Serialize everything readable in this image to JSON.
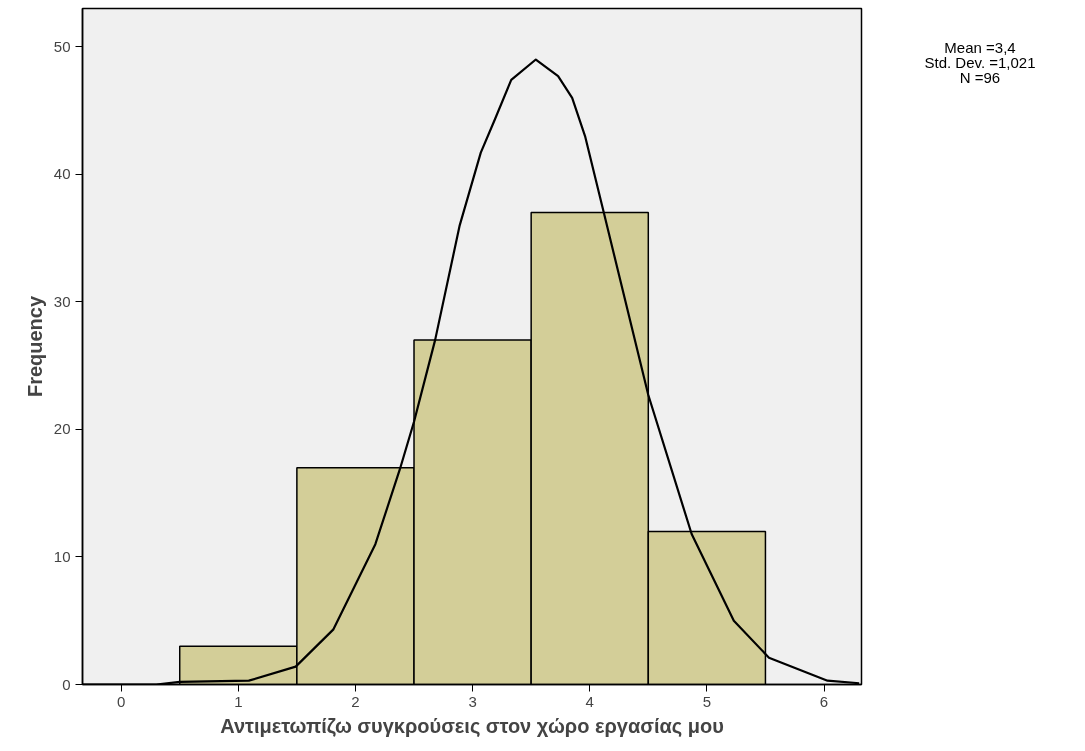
{
  "chart_data": {
    "type": "histogram",
    "xlabel": "Αντιμετωπίζω συγκρούσεις στον χώρο εργασίας μου",
    "ylabel": "Frequency",
    "annotations": [
      "Mean =3,4",
      "Std. Dev. =1,021",
      "N =96"
    ],
    "xlim": [
      -0.33,
      6.32
    ],
    "ylim": [
      0,
      53
    ],
    "xticks": [
      0,
      1,
      2,
      3,
      4,
      5,
      6
    ],
    "yticks": [
      0,
      10,
      20,
      30,
      40,
      50
    ],
    "grid": false,
    "series": [
      {
        "color": "#d3ce98",
        "bins": [
          0.5,
          1.5,
          2.5,
          3.5,
          4.5,
          5.5
        ],
        "values": [
          3,
          17,
          27,
          37,
          12
        ]
      },
      {
        "type": "line",
        "color": "#000000",
        "x": [
          -0.33,
          0.3,
          0.5,
          1.09,
          1.49,
          1.81,
          2.17,
          2.38,
          2.5,
          2.68,
          2.89,
          3.07,
          3.19,
          3.33,
          3.54,
          3.73,
          3.85,
          3.96,
          4.12,
          4.5,
          4.87,
          5.23,
          5.53,
          6.03,
          6.3
        ],
        "values": [
          0,
          0,
          0.2,
          0.3,
          1.4,
          4.3,
          11,
          16.9,
          20.6,
          27,
          36,
          41.7,
          44.3,
          47.4,
          49,
          47.7,
          46,
          43,
          37,
          22.7,
          11.8,
          5,
          2.1,
          0.3,
          0.1
        ]
      }
    ]
  }
}
